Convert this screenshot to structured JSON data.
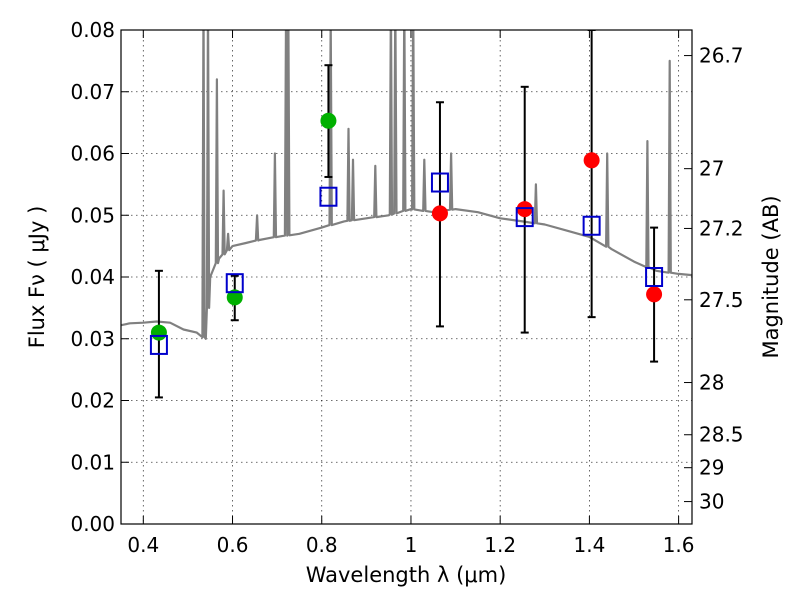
{
  "chart_data": {
    "type": "scatter",
    "xlabel": "Wavelength  λ (μm)",
    "ylabel": "Flux  Fν  ( μJy )",
    "y2label": "Magnitude (AB)",
    "xlim": [
      0.35,
      1.63
    ],
    "ylim": [
      0.0,
      0.08
    ],
    "x_ticks": [
      "0.4",
      "0.6",
      "0.8",
      "1",
      "1.2",
      "1.4",
      "1.6"
    ],
    "y_ticks": [
      "0.00",
      "0.01",
      "0.02",
      "0.03",
      "0.04",
      "0.05",
      "0.06",
      "0.07",
      "0.08"
    ],
    "y2_ticks": [
      {
        "label": "26.7",
        "value": 26.7
      },
      {
        "label": "27",
        "value": 27.0
      },
      {
        "label": "27.2",
        "value": 27.2
      },
      {
        "label": "27.5",
        "value": 27.5
      },
      {
        "label": "28",
        "value": 28.0
      },
      {
        "label": "28.5",
        "value": 28.5
      },
      {
        "label": "29",
        "value": 29.0
      },
      {
        "label": "30",
        "value": 30.0
      }
    ],
    "grid": true,
    "colors": {
      "model": "#808080",
      "optical_points": "#00b000",
      "ir_points": "#ff0000",
      "model_photometry": "#0000cc",
      "errorbar": "#000000"
    },
    "model_spectrum": {
      "continuum": [
        [
          0.35,
          0.0322
        ],
        [
          0.37,
          0.0325
        ],
        [
          0.4,
          0.0326
        ],
        [
          0.43,
          0.0328
        ],
        [
          0.46,
          0.0326
        ],
        [
          0.49,
          0.0315
        ],
        [
          0.52,
          0.031
        ],
        [
          0.54,
          0.03
        ],
        [
          0.55,
          0.04
        ],
        [
          0.57,
          0.043
        ],
        [
          0.6,
          0.045
        ],
        [
          0.63,
          0.0455
        ],
        [
          0.66,
          0.046
        ],
        [
          0.7,
          0.0465
        ],
        [
          0.75,
          0.047
        ],
        [
          0.8,
          0.048
        ],
        [
          0.85,
          0.049
        ],
        [
          0.9,
          0.0495
        ],
        [
          0.95,
          0.05
        ],
        [
          1.0,
          0.051
        ],
        [
          1.05,
          0.0505
        ],
        [
          1.1,
          0.051
        ],
        [
          1.15,
          0.0505
        ],
        [
          1.2,
          0.0495
        ],
        [
          1.25,
          0.049
        ],
        [
          1.3,
          0.0485
        ],
        [
          1.35,
          0.0475
        ],
        [
          1.4,
          0.0465
        ],
        [
          1.45,
          0.0445
        ],
        [
          1.5,
          0.0425
        ],
        [
          1.55,
          0.041
        ],
        [
          1.6,
          0.0405
        ],
        [
          1.63,
          0.0403
        ]
      ],
      "lines": [
        [
          0.535,
          0.085
        ],
        [
          0.545,
          0.085
        ],
        [
          0.565,
          0.072
        ],
        [
          0.58,
          0.054
        ],
        [
          0.59,
          0.047
        ],
        [
          0.655,
          0.05
        ],
        [
          0.695,
          0.06
        ],
        [
          0.72,
          0.085
        ],
        [
          0.725,
          0.085
        ],
        [
          0.82,
          0.082
        ],
        [
          0.86,
          0.064
        ],
        [
          0.87,
          0.059
        ],
        [
          0.92,
          0.058
        ],
        [
          0.955,
          0.085
        ],
        [
          0.965,
          0.085
        ],
        [
          0.985,
          0.085
        ],
        [
          1.005,
          0.085
        ],
        [
          1.03,
          0.059
        ],
        [
          1.09,
          0.06
        ],
        [
          1.28,
          0.055
        ],
        [
          1.44,
          0.06
        ],
        [
          1.53,
          0.062
        ],
        [
          1.58,
          0.075
        ]
      ]
    },
    "series": [
      {
        "marker": "green-circle",
        "points": [
          {
            "x": 0.435,
            "y": 0.031,
            "yerr": [
              0.0205,
              0.041
            ]
          },
          {
            "x": 0.605,
            "y": 0.0367,
            "yerr": [
              0.033,
              0.0402
            ]
          },
          {
            "x": 0.815,
            "y": 0.0653,
            "yerr": [
              0.0562,
              0.0743
            ]
          }
        ]
      },
      {
        "marker": "red-circle",
        "points": [
          {
            "x": 1.065,
            "y": 0.0503,
            "yerr": [
              0.032,
              0.0683
            ]
          },
          {
            "x": 1.255,
            "y": 0.051,
            "yerr": [
              0.031,
              0.0708
            ]
          },
          {
            "x": 1.405,
            "y": 0.0589,
            "yerr": [
              0.0335,
              0.08
            ]
          },
          {
            "x": 1.545,
            "y": 0.0372,
            "yerr": [
              0.0263,
              0.048
            ]
          }
        ]
      },
      {
        "marker": "blue-open-square",
        "points": [
          {
            "x": 0.435,
            "y": 0.029
          },
          {
            "x": 0.605,
            "y": 0.039
          },
          {
            "x": 0.815,
            "y": 0.053
          },
          {
            "x": 1.065,
            "y": 0.0553
          },
          {
            "x": 1.255,
            "y": 0.0497
          },
          {
            "x": 1.405,
            "y": 0.0483
          },
          {
            "x": 1.545,
            "y": 0.04
          }
        ]
      }
    ]
  }
}
